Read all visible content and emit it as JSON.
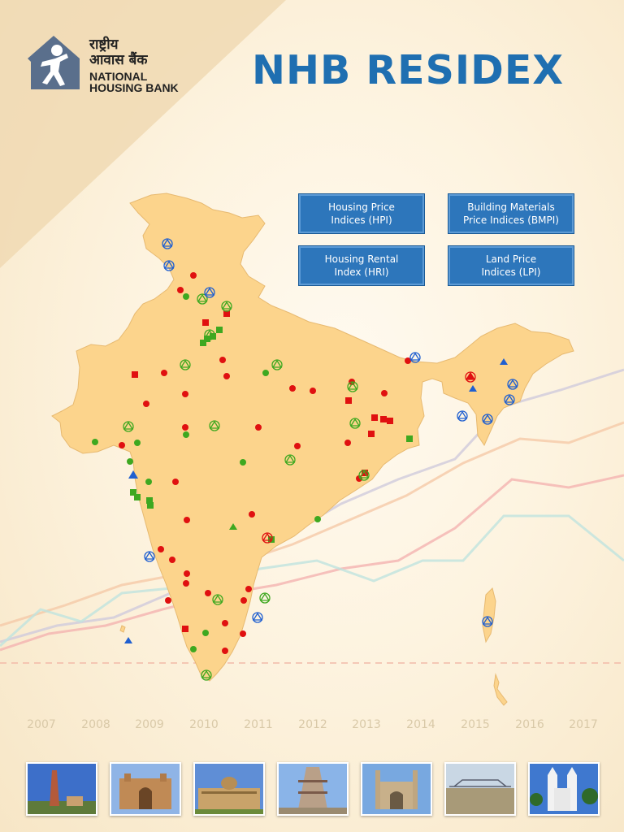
{
  "logo": {
    "hindi_line1": "राष्ट्रीय",
    "hindi_line2": "आवास बैंक",
    "english_line1": "NATIONAL",
    "english_line2": "HOUSING BANK"
  },
  "title": "NHB RESIDEX",
  "index_buttons": [
    {
      "line1": "Housing Price",
      "line2": "Indices (HPI)"
    },
    {
      "line1": "Building Materials",
      "line2": "Price Indices (BMPI)"
    },
    {
      "line1": "Housing Rental",
      "line2": "Index (HRI)"
    },
    {
      "line1": "Land Price",
      "line2": "Indices (LPI)"
    }
  ],
  "years": [
    "2007",
    "2008",
    "2009",
    "2010",
    "2011",
    "2012",
    "2013",
    "2014",
    "2015",
    "2016",
    "2017"
  ],
  "colors": {
    "title_blue": "#1f6fb1",
    "button_blue": "#2d76bb",
    "map_fill": "#fcd48c",
    "marker_red": "#e01010",
    "marker_green": "#3ea820",
    "marker_blue": "#1f5fd0"
  },
  "landmark_photos": [
    "qutub-minar-photo",
    "gateway-of-india-photo",
    "vidhana-soudha-photo",
    "temple-gopuram-photo",
    "charminar-photo",
    "howrah-bridge-photo",
    "church-photo"
  ]
}
